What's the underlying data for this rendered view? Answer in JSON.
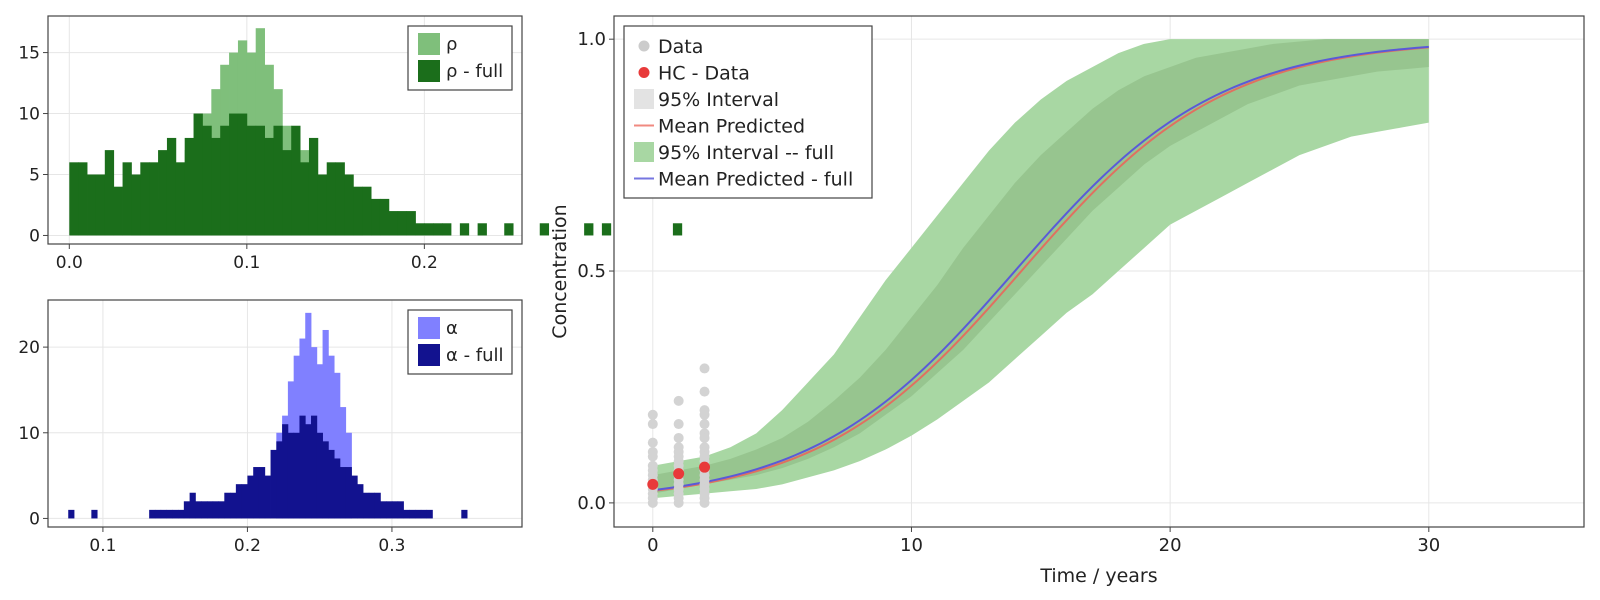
{
  "chart_data": [
    {
      "type": "bar",
      "panel": "rho-histogram",
      "xlim": [
        -0.012,
        0.255
      ],
      "ylim": [
        -0.7,
        18.0
      ],
      "xticks": [
        0.0,
        0.1,
        0.2
      ],
      "xtick_labels": [
        "0.0",
        "0.1",
        "0.2"
      ],
      "yticks": [
        0,
        5,
        10,
        15
      ],
      "ytick_labels": [
        "0",
        "5",
        "10",
        "15"
      ],
      "grid": true,
      "legend_position": "top-right",
      "bin_width": 0.005,
      "series": [
        {
          "name": "ρ",
          "color": "#7fbf7b",
          "x_start": 0.035,
          "values": [
            1,
            2,
            2,
            3,
            4,
            5,
            7,
            10,
            10,
            12,
            14,
            15,
            16,
            15,
            17,
            14,
            12,
            9,
            8,
            7,
            5,
            4,
            2,
            2,
            1,
            1
          ]
        },
        {
          "name": "ρ - full",
          "color": "#1b6e1b",
          "x_start": 0.0,
          "values": [
            6,
            6,
            5,
            5,
            7,
            4,
            6,
            5,
            6,
            6,
            7,
            8,
            6,
            8,
            10,
            9,
            8,
            9,
            10,
            10,
            9,
            9,
            8,
            9,
            7,
            9,
            6,
            8,
            5,
            6,
            6,
            5,
            4,
            4,
            3,
            3,
            2,
            2,
            2,
            1,
            1,
            1,
            1,
            0,
            1,
            0,
            1,
            0,
            0,
            1,
            0,
            0,
            0,
            1,
            0,
            0,
            0,
            0,
            1,
            0,
            1,
            0,
            0,
            0,
            0,
            0,
            0,
            0,
            1
          ]
        }
      ]
    },
    {
      "type": "bar",
      "panel": "alpha-histogram",
      "xlim": [
        0.062,
        0.39
      ],
      "ylim": [
        -1.0,
        25.5
      ],
      "xticks": [
        0.1,
        0.2,
        0.3
      ],
      "xtick_labels": [
        "0.1",
        "0.2",
        "0.3"
      ],
      "yticks": [
        0,
        10,
        20
      ],
      "ytick_labels": [
        "0",
        "10",
        "20"
      ],
      "grid": true,
      "legend_position": "top-right",
      "bin_width": 0.004,
      "series": [
        {
          "name": "α",
          "color": "#8080ff",
          "x_start": 0.22,
          "values": [
            10,
            12,
            16,
            19,
            21,
            24,
            20,
            18,
            22,
            19,
            17,
            13,
            10
          ]
        },
        {
          "name": "α - full",
          "color": "#12128f",
          "x_start": 0.076,
          "values": [
            1,
            0,
            0,
            0,
            1,
            0,
            0,
            0,
            0,
            0,
            0,
            0,
            0,
            0,
            1,
            1,
            1,
            1,
            1,
            1,
            2,
            3,
            2,
            2,
            2,
            2,
            2,
            3,
            3,
            4,
            4,
            5,
            6,
            6,
            5,
            8,
            9,
            11,
            10,
            10,
            12,
            11,
            12,
            10,
            9,
            8,
            7,
            6,
            6,
            5,
            4,
            3,
            3,
            3,
            2,
            2,
            2,
            2,
            1,
            1,
            1,
            1,
            1,
            0,
            0,
            0,
            0,
            0,
            1
          ]
        }
      ]
    },
    {
      "type": "line",
      "panel": "concentration-timecourse",
      "xlabel": "Time / years",
      "ylabel": "Concentration",
      "xlim": [
        -1.5,
        36.0
      ],
      "ylim": [
        -0.052,
        1.05
      ],
      "xticks": [
        0,
        10,
        20,
        30
      ],
      "xtick_labels": [
        "0",
        "10",
        "20",
        "30"
      ],
      "yticks": [
        0.0,
        0.5,
        1.0
      ],
      "ytick_labels": [
        "0.0",
        "0.5",
        "1.0"
      ],
      "grid": true,
      "legend_position": "top-left",
      "logistic": {
        "midpoint": 14.0,
        "rate": 0.255
      },
      "legend": [
        {
          "label": "Data",
          "kind": "dot",
          "color": "#cccccc"
        },
        {
          "label": "HC - Data",
          "kind": "dot",
          "color": "#e83a3a"
        },
        {
          "label": "95% Interval",
          "kind": "box",
          "color": "#e3e3e3"
        },
        {
          "label": "Mean Predicted",
          "kind": "line",
          "color": "#f08a80"
        },
        {
          "label": "95% Interval -- full",
          "kind": "box",
          "color": "#a8d7a3"
        },
        {
          "label": "Mean Predicted - full",
          "kind": "line",
          "color": "#7676e0"
        }
      ],
      "colors": {
        "interval": "#d9d9d9",
        "interval_full": "#a8d7a3",
        "mean": "#e07060",
        "mean_full": "#5a5ad8",
        "data": "#d3d3d3",
        "hc_data": "#e83a3a"
      },
      "hc_data": [
        {
          "x": 0,
          "y": 0.04
        },
        {
          "x": 1,
          "y": 0.063
        },
        {
          "x": 2,
          "y": 0.077
        }
      ],
      "data": [
        {
          "x": 0,
          "y": [
            0.19,
            0.17,
            0.13,
            0.11,
            0.1,
            0.08,
            0.07,
            0.06,
            0.05,
            0.04,
            0.03,
            0.02,
            0.01,
            0.0
          ]
        },
        {
          "x": 1,
          "y": [
            0.22,
            0.17,
            0.14,
            0.12,
            0.11,
            0.1,
            0.09,
            0.08,
            0.07,
            0.06,
            0.05,
            0.04,
            0.03,
            0.02,
            0.01,
            0.0
          ]
        },
        {
          "x": 2,
          "y": [
            0.29,
            0.24,
            0.2,
            0.19,
            0.17,
            0.15,
            0.14,
            0.12,
            0.11,
            0.1,
            0.09,
            0.08,
            0.07,
            0.06,
            0.05,
            0.04,
            0.03,
            0.02,
            0.01,
            0.0
          ]
        }
      ],
      "interval_full_band": {
        "x": [
          0,
          1,
          2,
          3,
          4,
          5,
          6,
          7,
          8,
          9,
          10,
          11,
          12,
          13,
          14,
          15,
          16,
          17,
          18,
          19,
          20,
          21,
          22,
          23,
          24,
          25,
          26,
          27,
          28,
          29,
          30
        ],
        "lower": [
          0.01,
          0.015,
          0.02,
          0.025,
          0.03,
          0.04,
          0.055,
          0.07,
          0.09,
          0.115,
          0.145,
          0.18,
          0.22,
          0.26,
          0.31,
          0.36,
          0.41,
          0.45,
          0.5,
          0.55,
          0.6,
          0.63,
          0.66,
          0.69,
          0.72,
          0.75,
          0.77,
          0.79,
          0.8,
          0.81,
          0.82
        ],
        "upper": [
          0.08,
          0.09,
          0.1,
          0.12,
          0.15,
          0.2,
          0.26,
          0.32,
          0.4,
          0.48,
          0.55,
          0.62,
          0.69,
          0.76,
          0.82,
          0.87,
          0.91,
          0.94,
          0.97,
          0.99,
          1.0,
          1.0,
          1.0,
          1.0,
          1.0,
          1.0,
          1.0,
          1.0,
          1.0,
          1.0,
          1.0
        ]
      },
      "interval_band": {
        "x": [
          0,
          1,
          2,
          3,
          4,
          5,
          6,
          7,
          8,
          9,
          10,
          11,
          12,
          13,
          14,
          15,
          16,
          17,
          18,
          19,
          20,
          21,
          22,
          23,
          24,
          25,
          26,
          27,
          28,
          29,
          30
        ],
        "lower": [
          0.02,
          0.03,
          0.04,
          0.05,
          0.06,
          0.075,
          0.095,
          0.12,
          0.15,
          0.19,
          0.23,
          0.28,
          0.33,
          0.39,
          0.45,
          0.51,
          0.57,
          0.63,
          0.68,
          0.73,
          0.77,
          0.8,
          0.83,
          0.86,
          0.88,
          0.9,
          0.91,
          0.92,
          0.93,
          0.935,
          0.94
        ],
        "upper": [
          0.06,
          0.07,
          0.08,
          0.095,
          0.115,
          0.14,
          0.175,
          0.22,
          0.27,
          0.33,
          0.4,
          0.47,
          0.55,
          0.62,
          0.69,
          0.75,
          0.8,
          0.85,
          0.89,
          0.92,
          0.94,
          0.96,
          0.97,
          0.98,
          0.99,
          0.995,
          1.0,
          1.0,
          1.0,
          1.0,
          1.0
        ]
      }
    }
  ]
}
